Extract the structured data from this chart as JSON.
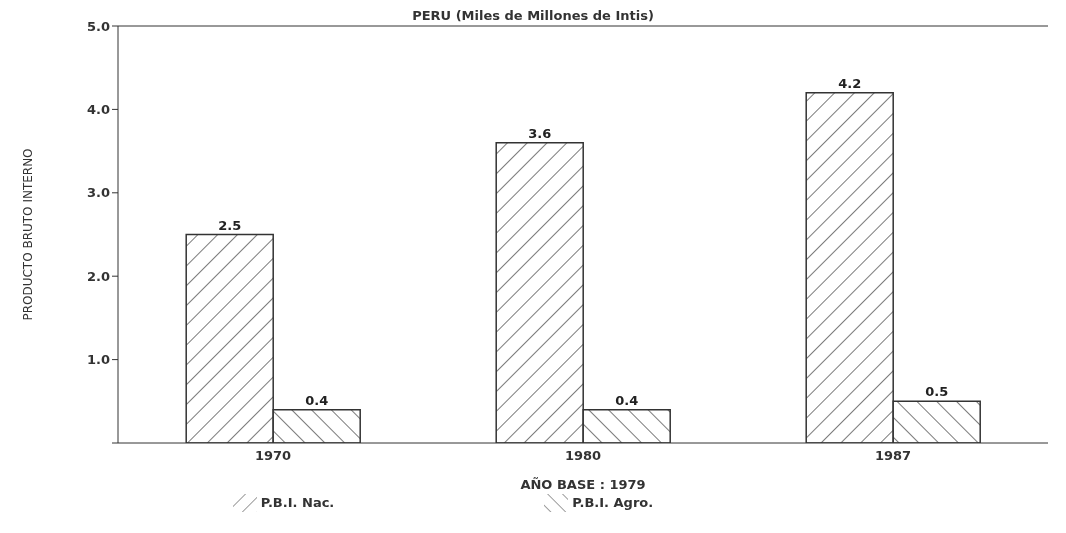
{
  "chart_data": {
    "type": "bar",
    "title": "PERU (Miles de Millones de Intis)",
    "xlabel": "AÑO BASE : 1979",
    "ylabel": "PRODUCTO BRUTO INTERNO",
    "categories": [
      "1970",
      "1980",
      "1987"
    ],
    "series": [
      {
        "name": "P.B.I. Nac.",
        "color": "#333333",
        "values": [
          2.5,
          3.6,
          4.2
        ]
      },
      {
        "name": "P.B.I. Agro.",
        "color": "#333333",
        "values": [
          0.4,
          0.4,
          0.5
        ]
      }
    ],
    "ylim": [
      0,
      5
    ],
    "yticks": [
      {
        "value": 0,
        "label": null
      },
      {
        "value": 1,
        "label": "1.0"
      },
      {
        "value": 2,
        "label": "2.0"
      },
      {
        "value": 3,
        "label": "3.0"
      },
      {
        "value": 4,
        "label": "4.0"
      },
      {
        "value": 5,
        "label": "5.0"
      }
    ],
    "data_labels": true,
    "legend": "bottom",
    "grid": false
  }
}
